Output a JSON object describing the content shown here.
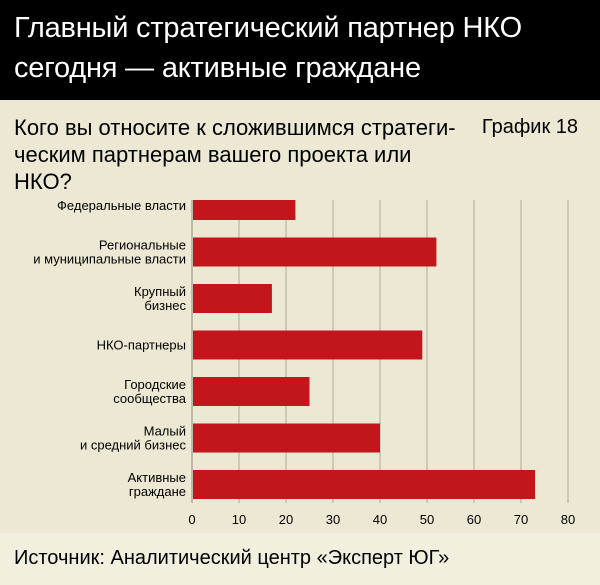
{
  "header": {
    "title": "Главный стратегический партнер НКО\nсегодня — активные граждане"
  },
  "question": "Кого вы относите к сложившимся стратеги-\nческим партнерам вашего проекта или НКО?",
  "chart_number": "График 18",
  "source": "Источник: Аналитический центр «Эксперт ЮГ»",
  "colors": {
    "bar": "#c3161c",
    "grid": "#9c9a90",
    "header_bg": "#000000",
    "panel_bg": "#ece8d3"
  },
  "chart_data": {
    "type": "bar",
    "orientation": "horizontal",
    "categories": [
      [
        "Федеральные власти"
      ],
      [
        "Региональные",
        "и муниципальные власти"
      ],
      [
        "Крупный",
        "бизнес"
      ],
      [
        "НКО-партнеры"
      ],
      [
        "Городские",
        "сообщества"
      ],
      [
        "Малый",
        "и средний бизнес"
      ],
      [
        "Активные",
        "граждане"
      ]
    ],
    "values": [
      22,
      52,
      17,
      49,
      25,
      40,
      73
    ],
    "xlim": [
      0,
      80
    ],
    "xticks": [
      0,
      10,
      20,
      30,
      40,
      50,
      60,
      70,
      80
    ],
    "grid": true
  }
}
